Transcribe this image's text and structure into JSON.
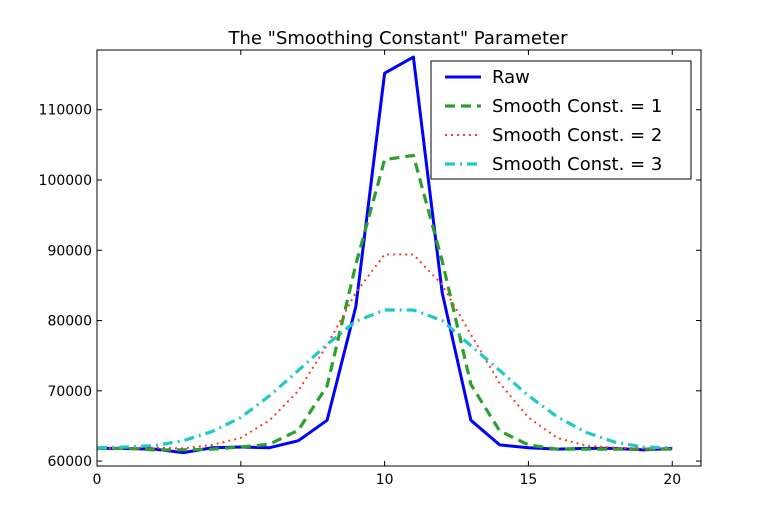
{
  "chart_data": {
    "type": "line",
    "title": "The \"Smoothing Constant\" Parameter",
    "xlabel": "",
    "ylabel": "",
    "xlim": [
      0,
      21
    ],
    "ylim": [
      59300,
      118500
    ],
    "x_ticks": [
      0,
      5,
      10,
      15,
      20
    ],
    "y_ticks": [
      60000,
      70000,
      80000,
      90000,
      100000,
      110000
    ],
    "grid": false,
    "legend_position": "top-right",
    "x": [
      0,
      1,
      2,
      3,
      4,
      5,
      6,
      7,
      8,
      9,
      10,
      11,
      12,
      13,
      14,
      15,
      16,
      17,
      18,
      19,
      20
    ],
    "series": [
      {
        "name": "Raw",
        "color": "#0000ff",
        "style": "solid",
        "values": [
          61800,
          61800,
          61700,
          61200,
          61900,
          62000,
          61900,
          62900,
          65800,
          82000,
          115200,
          117500,
          84000,
          65800,
          62300,
          61900,
          61700,
          61800,
          61800,
          61600,
          61800
        ]
      },
      {
        "name": "Smooth Const. = 1",
        "color": "#2ca02c",
        "style": "dashed",
        "values": [
          61800,
          61800,
          61600,
          61600,
          61700,
          62000,
          62400,
          64400,
          70700,
          88000,
          102900,
          103500,
          88500,
          70900,
          64300,
          62300,
          61700,
          61700,
          61700,
          61700,
          61700
        ]
      },
      {
        "name": "Smooth Const. = 2",
        "color": "#ff3b1f",
        "style": "dotted",
        "values": [
          61800,
          61900,
          61900,
          61800,
          62300,
          63300,
          65800,
          70000,
          76500,
          84000,
          89400,
          89400,
          85100,
          78000,
          71100,
          66200,
          63300,
          62200,
          61900,
          61800,
          61800
        ]
      },
      {
        "name": "Smooth Const. = 3",
        "color": "#20c8c8",
        "style": "dashdot",
        "values": [
          61900,
          62000,
          62200,
          62900,
          64200,
          66200,
          69300,
          72900,
          76600,
          79900,
          81500,
          81500,
          80000,
          76400,
          72900,
          69300,
          66300,
          64100,
          62700,
          62000,
          61900
        ]
      }
    ]
  }
}
